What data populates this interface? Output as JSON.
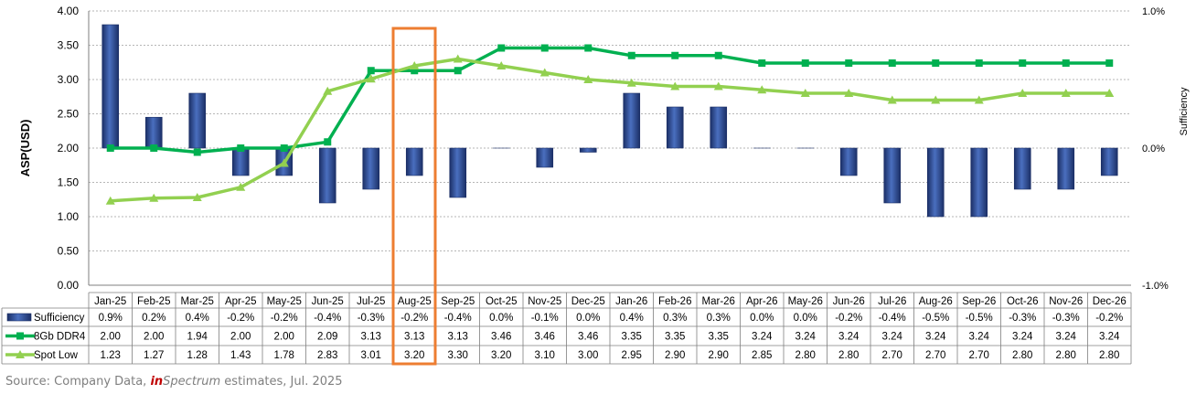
{
  "chart_data": {
    "type": "bar-line-combo",
    "categories": [
      "Jan-25",
      "Feb-25",
      "Mar-25",
      "Apr-25",
      "May-25",
      "Jun-25",
      "Jul-25",
      "Aug-25",
      "Sep-25",
      "Oct-25",
      "Nov-25",
      "Dec-25",
      "Jan-26",
      "Feb-26",
      "Mar-26",
      "Apr-26",
      "May-26",
      "Jun-26",
      "Jul-26",
      "Aug-26",
      "Sep-26",
      "Oct-26",
      "Nov-26",
      "Dec-26"
    ],
    "ylabel": "ASP(USD)",
    "ylim": [
      0,
      4
    ],
    "yticks": [
      "0.00",
      "0.50",
      "1.00",
      "1.50",
      "2.00",
      "2.50",
      "3.00",
      "3.50",
      "4.00"
    ],
    "y2label": "Sufficiency",
    "y2lim": [
      -1.0,
      1.0
    ],
    "y2ticks": [
      "-1.0%",
      "0.0%",
      "1.0%"
    ],
    "grid": "horizontal-dashed",
    "highlight_category": "Aug-25",
    "series": [
      {
        "name": "Sufficiency",
        "kind": "bar",
        "axis": "secondary",
        "color": "#2e4d8f",
        "values": [
          0.9,
          0.2,
          0.4,
          -0.2,
          -0.2,
          -0.4,
          -0.3,
          -0.2,
          -0.4,
          0.0,
          -0.1,
          0.0,
          0.4,
          0.3,
          0.3,
          0.0,
          0.0,
          -0.2,
          -0.4,
          -0.5,
          -0.5,
          -0.3,
          -0.3,
          -0.2
        ],
        "labels": [
          "0.9%",
          "0.2%",
          "0.4%",
          "-0.2%",
          "-0.2%",
          "-0.4%",
          "-0.3%",
          "-0.2%",
          "-0.4%",
          "0.0%",
          "-0.1%",
          "0.0%",
          "0.4%",
          "0.3%",
          "0.3%",
          "0.0%",
          "0.0%",
          "-0.2%",
          "-0.4%",
          "-0.5%",
          "-0.5%",
          "-0.3%",
          "-0.3%",
          "-0.2%"
        ],
        "bar_heights": [
          1.8,
          0.45,
          0.8,
          -0.4,
          -0.4,
          -0.8,
          -0.6,
          -0.4,
          -0.72,
          0,
          -0.28,
          -0.06,
          0.8,
          0.6,
          0.6,
          0,
          0,
          -0.4,
          -0.8,
          -1.0,
          -1.0,
          -0.6,
          -0.6,
          -0.4
        ]
      },
      {
        "name": "8Gb DDR4",
        "kind": "line",
        "axis": "primary",
        "color": "#00b050",
        "marker": "square",
        "values": [
          2.0,
          2.0,
          1.94,
          2.0,
          2.0,
          2.09,
          3.13,
          3.13,
          3.13,
          3.46,
          3.46,
          3.46,
          3.35,
          3.35,
          3.35,
          3.24,
          3.24,
          3.24,
          3.24,
          3.24,
          3.24,
          3.24,
          3.24,
          3.24
        ],
        "labels": [
          "2.00",
          "2.00",
          "1.94",
          "2.00",
          "2.00",
          "2.09",
          "3.13",
          "3.13",
          "3.13",
          "3.46",
          "3.46",
          "3.46",
          "3.35",
          "3.35",
          "3.35",
          "3.24",
          "3.24",
          "3.24",
          "3.24",
          "3.24",
          "3.24",
          "3.24",
          "3.24",
          "3.24"
        ]
      },
      {
        "name": "Spot Low",
        "kind": "line",
        "axis": "primary",
        "color": "#92d050",
        "marker": "triangle",
        "values": [
          1.23,
          1.27,
          1.28,
          1.43,
          1.78,
          2.83,
          3.01,
          3.2,
          3.3,
          3.2,
          3.1,
          3.0,
          2.95,
          2.9,
          2.9,
          2.85,
          2.8,
          2.8,
          2.7,
          2.7,
          2.7,
          2.8,
          2.8,
          2.8
        ],
        "labels": [
          "1.23",
          "1.27",
          "1.28",
          "1.43",
          "1.78",
          "2.83",
          "3.01",
          "3.20",
          "3.30",
          "3.20",
          "3.10",
          "3.00",
          "2.95",
          "2.90",
          "2.90",
          "2.85",
          "2.80",
          "2.80",
          "2.70",
          "2.70",
          "2.70",
          "2.80",
          "2.80",
          "2.80"
        ]
      }
    ]
  },
  "source": {
    "prefix": "Source: Company Data, ",
    "brand_in": "in",
    "brand_rest": "Spectrum",
    "suffix": " estimates, Jul. 2025"
  }
}
